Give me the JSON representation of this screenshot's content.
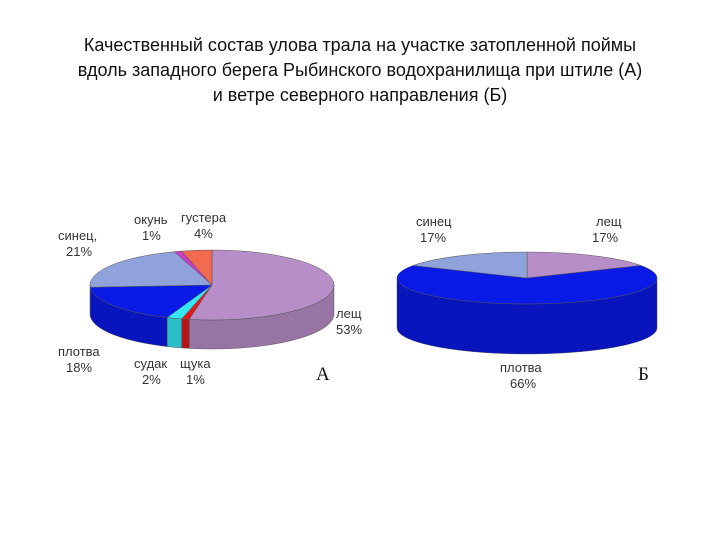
{
  "title_lines": [
    "Качественный состав улова трала на участке затопленной поймы",
    "вдоль западного берега Рыбинского водохранилища при штиле (А)",
    "и ветре северного направления (Б)"
  ],
  "colors": {
    "лещ": "#b88ec8",
    "синец": "#8fa2dc",
    "плотва": "#0a1ae6",
    "окунь": "#c93ec4",
    "густера": "#f26a50",
    "судак": "#33e8f4",
    "щука": "#e01a1a"
  },
  "chart_data": [
    {
      "type": "pie",
      "panel": "А",
      "slices": [
        {
          "name": "лещ",
          "percent": 53,
          "label": "лещ",
          "value_label": "53%"
        },
        {
          "name": "щука",
          "percent": 1,
          "label": "щука",
          "value_label": "1%"
        },
        {
          "name": "судак",
          "percent": 2,
          "label": "судак",
          "value_label": "2%"
        },
        {
          "name": "плотва",
          "percent": 18,
          "label": "плотва",
          "value_label": "18%"
        },
        {
          "name": "синец",
          "percent": 21,
          "label": "синец,",
          "value_label": "21%"
        },
        {
          "name": "окунь",
          "percent": 1,
          "label": "окунь",
          "value_label": "1%"
        },
        {
          "name": "густера",
          "percent": 4,
          "label": "густера",
          "value_label": "4%"
        }
      ]
    },
    {
      "type": "pie",
      "panel": "Б",
      "slices": [
        {
          "name": "лещ",
          "percent": 17,
          "label": "лещ",
          "value_label": "17%"
        },
        {
          "name": "плотва",
          "percent": 66,
          "label": "плотва",
          "value_label": "66%"
        },
        {
          "name": "синец",
          "percent": 17,
          "label": "синец",
          "value_label": "17%"
        }
      ]
    }
  ]
}
